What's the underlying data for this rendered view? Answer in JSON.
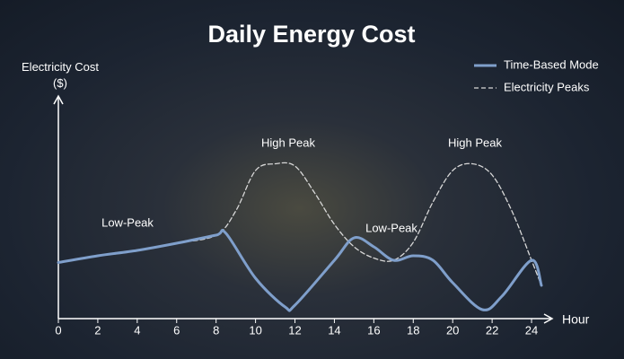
{
  "chart_data": {
    "type": "line",
    "title": "Daily Energy Cost",
    "y_label": "Electricity Cost ($)",
    "x_label": "Hour",
    "xlim": [
      0,
      25
    ],
    "xticks": [
      0,
      2,
      4,
      6,
      8,
      10,
      12,
      14,
      16,
      18,
      20,
      22,
      24
    ],
    "ylim": [
      0,
      10
    ],
    "legend": "top-right",
    "series": [
      {
        "name": "Time-Based Mode",
        "color": "#7f9fcb",
        "style": "solid",
        "x": [
          0,
          2,
          4,
          6,
          8,
          8.5,
          10,
          11.5,
          12,
          14,
          15,
          16,
          17,
          18,
          19,
          20,
          21.5,
          22.5,
          24,
          24.5
        ],
        "values": [
          2.5,
          2.8,
          3.04,
          3.36,
          3.72,
          3.8,
          1.8,
          0.52,
          0.6,
          2.6,
          3.6,
          3.2,
          2.6,
          2.8,
          2.6,
          1.6,
          0.4,
          1.0,
          2.6,
          1.48
        ]
      },
      {
        "name": "Electricity Peaks",
        "color": "#d8d8d8",
        "style": "dashed",
        "x": [
          0,
          2,
          4,
          6,
          8,
          9,
          10,
          11,
          12,
          13,
          14,
          15,
          16,
          17,
          18,
          19,
          20,
          21,
          22,
          23,
          24,
          24.5
        ],
        "values": [
          2.5,
          2.8,
          3.04,
          3.36,
          3.72,
          4.8,
          6.6,
          6.9,
          6.8,
          5.6,
          4.2,
          3.2,
          2.7,
          2.6,
          3.4,
          5.2,
          6.6,
          6.9,
          6.4,
          4.8,
          2.6,
          1.48
        ]
      }
    ],
    "annotations": [
      "Low-Peak",
      "High Peak",
      "Low-Peak",
      "High Peak"
    ]
  }
}
